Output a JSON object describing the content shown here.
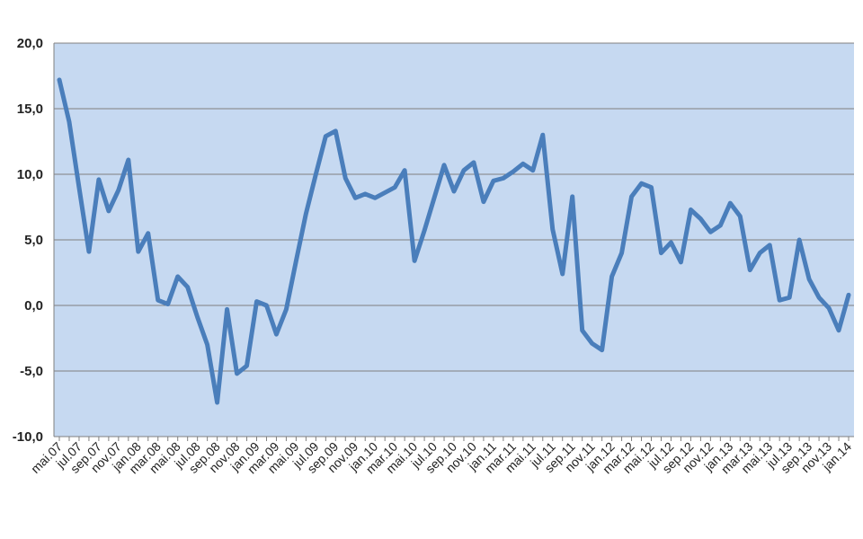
{
  "chart_data": {
    "type": "line",
    "title": "",
    "xlabel": "",
    "ylabel": "",
    "ylim": [
      -10,
      20
    ],
    "yticks": [
      "20,0",
      "15,0",
      "10,0",
      "5,0",
      "0,0",
      "-5,0",
      "-10,0"
    ],
    "grid": true,
    "legend": "none",
    "x": [
      "mai.07",
      "jun.07",
      "jul.07",
      "aug.07",
      "sep.07",
      "okt.07",
      "nov.07",
      "des.07",
      "jan.08",
      "feb.08",
      "mar.08",
      "apr.08",
      "mai.08",
      "jun.08",
      "jul.08",
      "aug.08",
      "sep.08",
      "okt.08",
      "nov.08",
      "des.08",
      "jan.09",
      "feb.09",
      "mar.09",
      "apr.09",
      "mai.09",
      "jun.09",
      "jul.09",
      "aug.09",
      "sep.09",
      "okt.09",
      "nov.09",
      "des.09",
      "jan.10",
      "feb.10",
      "mar.10",
      "apr.10",
      "mai.10",
      "jun.10",
      "jul.10",
      "aug.10",
      "sep.10",
      "okt.10",
      "nov.10",
      "des.10",
      "jan.11",
      "feb.11",
      "mar.11",
      "apr.11",
      "mai.11",
      "jun.11",
      "jul.11",
      "aug.11",
      "sep.11",
      "okt.11",
      "nov.11",
      "des.11",
      "jan.12",
      "feb.12",
      "mar.12",
      "apr.12",
      "mai.12",
      "jun.12",
      "jul.12",
      "aug.12",
      "sep.12",
      "okt.12",
      "nov.12",
      "des.12",
      "jan.13",
      "feb.13",
      "mar.13",
      "apr.13",
      "mai.13",
      "jun.13",
      "jul.13",
      "aug.13",
      "sep.13",
      "okt.13",
      "nov.13",
      "des.13",
      "jan.14"
    ],
    "xtick_labels": [
      "mai.07",
      "jul.07",
      "sep.07",
      "nov.07",
      "jan.08",
      "mar.08",
      "mai.08",
      "jul.08",
      "sep.08",
      "nov.08",
      "jan.09",
      "mar.09",
      "mai.09",
      "jul.09",
      "sep.09",
      "nov.09",
      "jan.10",
      "mar.10",
      "mai.10",
      "jul.10",
      "sep.10",
      "nov.10",
      "jan.11",
      "mar.11",
      "mai.11",
      "jul.11",
      "sep.11",
      "nov.11",
      "jan.12",
      "mar.12",
      "mai.12",
      "jul.12",
      "sep.12",
      "nov.12",
      "jan.13",
      "mar.13",
      "mai.13",
      "jul.13",
      "sep.13",
      "nov.13",
      "jan.14"
    ],
    "series": [
      {
        "values": [
          17.2,
          14.0,
          9.0,
          4.1,
          9.6,
          7.2,
          8.8,
          11.1,
          4.1,
          5.5,
          0.4,
          0.1,
          2.2,
          1.4,
          -0.9,
          -3.0,
          -7.4,
          -0.3,
          -5.2,
          -4.6,
          0.3,
          0.0,
          -2.2,
          -0.3,
          3.4,
          7.0,
          10.0,
          12.9,
          13.3,
          9.7,
          8.2,
          8.5,
          8.2,
          8.6,
          9.0,
          10.3,
          3.4,
          5.7,
          8.2,
          10.7,
          8.7,
          10.3,
          10.9,
          7.9,
          9.5,
          9.7,
          10.2,
          10.8,
          10.3,
          13.0,
          5.8,
          2.4,
          8.3,
          -1.9,
          -2.9,
          -3.4,
          2.2,
          4.0,
          8.3,
          9.3,
          9.0,
          4.0,
          4.8,
          3.3,
          7.3,
          6.6,
          5.6,
          6.1,
          7.8,
          6.8,
          2.7,
          4.0,
          4.6,
          0.4,
          0.6,
          5.0,
          2.0,
          0.6,
          -0.2,
          -1.9,
          0.8
        ],
        "color": "#4A7EBB"
      }
    ],
    "colors": {
      "plot_background": "#C6D9F1",
      "gridline": "#808080",
      "line": "#4A7EBB"
    }
  }
}
